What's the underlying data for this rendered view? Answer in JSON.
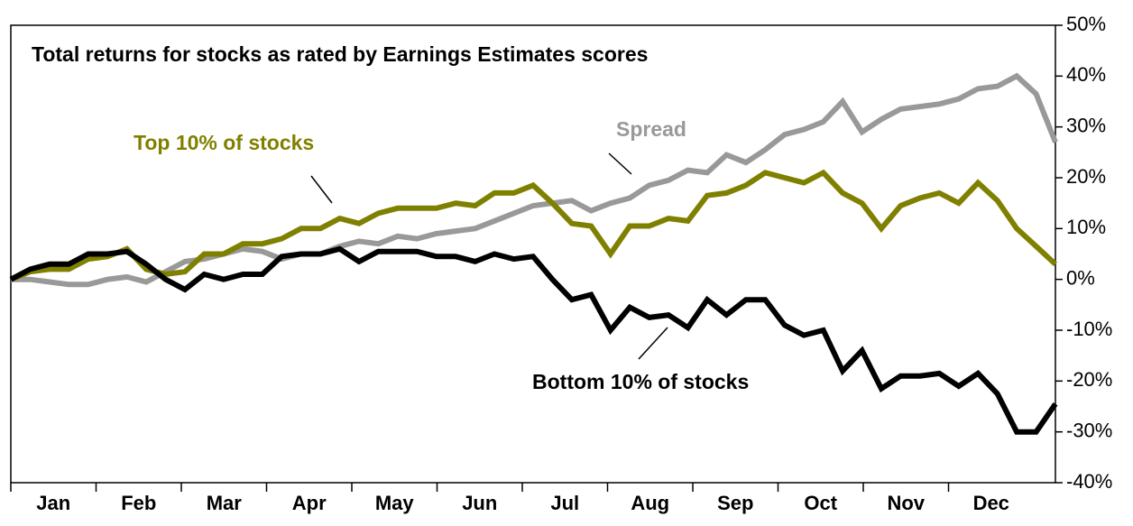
{
  "chart_data": {
    "type": "line",
    "title": "Total returns for stocks as rated by Earnings Estimates scores",
    "x_labels": [
      "Jan",
      "Feb",
      "Mar",
      "Apr",
      "May",
      "Jun",
      "Jul",
      "Aug",
      "Sep",
      "Oct",
      "Nov",
      "Dec"
    ],
    "series": [
      {
        "name": "Spread",
        "color": "#999999",
        "values": [
          0,
          0,
          -0.5,
          -1,
          -1,
          0,
          0.5,
          -0.5,
          1.5,
          3.5,
          4,
          5,
          6,
          5.5,
          4,
          5,
          5,
          6.5,
          7.5,
          7,
          8.5,
          8,
          9,
          9.5,
          10,
          11.5,
          13,
          14.5,
          15,
          15.5,
          13.5,
          15,
          16,
          18.5,
          19.5,
          21.5,
          21,
          24.5,
          23,
          25.5,
          28.5,
          29.5,
          31,
          35,
          29,
          31.5,
          33.5,
          34,
          34.5,
          35.5,
          37.5,
          38,
          40,
          36.5,
          27
        ]
      },
      {
        "name": "Top 10% of stocks",
        "color": "#808000",
        "values": [
          0,
          1.5,
          2,
          2,
          4,
          4.5,
          6,
          2,
          1,
          1.5,
          5,
          5,
          7,
          7,
          8,
          10,
          10,
          12,
          11,
          13,
          14,
          14,
          14,
          15,
          14.5,
          17,
          17,
          18.5,
          15,
          11,
          10.5,
          5,
          10.5,
          10.5,
          12,
          11.5,
          16.5,
          17,
          18.5,
          21,
          20,
          19,
          21,
          17,
          15,
          10,
          14.5,
          16,
          17,
          15,
          19,
          15.5,
          10,
          6.5,
          3
        ]
      },
      {
        "name": "Bottom 10% of stocks",
        "color": "#000000",
        "values": [
          0,
          2,
          3,
          3,
          5,
          5,
          5.5,
          3,
          0,
          -2,
          1,
          0,
          1,
          1,
          4.5,
          5,
          5,
          6,
          3.5,
          5.5,
          5.5,
          5.5,
          4.5,
          4.5,
          3.5,
          5,
          4,
          4.5,
          0,
          -4,
          -3,
          -10,
          -5.5,
          -7.5,
          -7,
          -9.5,
          -4,
          -7,
          -4,
          -4,
          -9,
          -11,
          -10,
          -18,
          -14,
          -21.5,
          -19,
          -19,
          -18.5,
          -21,
          -18.5,
          -22.5,
          -30,
          -30,
          -24.5
        ]
      }
    ],
    "ylim": [
      -40,
      50
    ],
    "yticks": [
      {
        "value": -40,
        "label": "-40%"
      },
      {
        "value": -30,
        "label": "-30%"
      },
      {
        "value": -20,
        "label": "-20%"
      },
      {
        "value": -10,
        "label": "-10%"
      },
      {
        "value": 0,
        "label": "0%"
      },
      {
        "value": 10,
        "label": "10%"
      },
      {
        "value": 20,
        "label": "20%"
      },
      {
        "value": 30,
        "label": "30%"
      },
      {
        "value": 40,
        "label": "40%"
      },
      {
        "value": 50,
        "label": "50%"
      }
    ],
    "y_axis_side": "right"
  }
}
